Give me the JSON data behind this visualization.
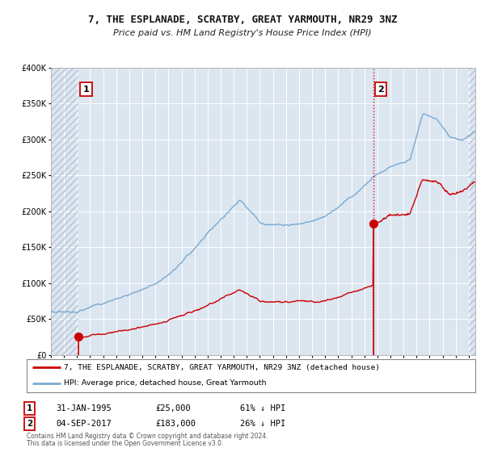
{
  "title": "7, THE ESPLANADE, SCRATBY, GREAT YARMOUTH, NR29 3NZ",
  "subtitle": "Price paid vs. HM Land Registry's House Price Index (HPI)",
  "legend_line1": "7, THE ESPLANADE, SCRATBY, GREAT YARMOUTH, NR29 3NZ (detached house)",
  "legend_line2": "HPI: Average price, detached house, Great Yarmouth",
  "annotation1_date": "31-JAN-1995",
  "annotation1_price": "£25,000",
  "annotation1_hpi": "61% ↓ HPI",
  "annotation2_date": "04-SEP-2017",
  "annotation2_price": "£183,000",
  "annotation2_hpi": "26% ↓ HPI",
  "footnote1": "Contains HM Land Registry data © Crown copyright and database right 2024.",
  "footnote2": "This data is licensed under the Open Government Licence v3.0.",
  "sale1_year": 1995.08,
  "sale1_price": 25000,
  "sale2_year": 2017.67,
  "sale2_price": 183000,
  "ylim": [
    0,
    400000
  ],
  "xlim_start": 1993.0,
  "xlim_end": 2025.5,
  "hatch_left_end": 1995.08,
  "hatch_right_start": 2025.0,
  "dashed_vline": 2017.67,
  "fig_bg": "#ffffff",
  "plot_bg": "#dce6f1",
  "grid_color": "#ffffff",
  "red_color": "#cc0000",
  "blue_color": "#7aaacf",
  "hatch_color": "#b0bed0"
}
